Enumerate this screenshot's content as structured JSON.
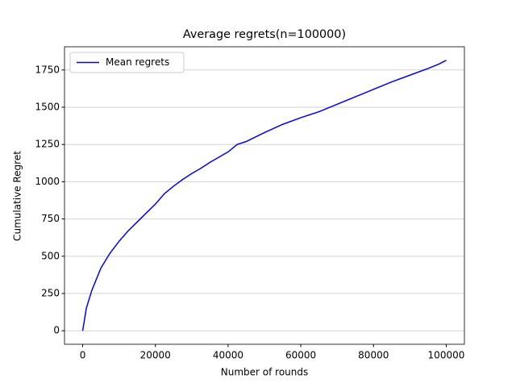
{
  "chart_data": {
    "type": "line",
    "title": "Average regrets(n=100000)",
    "x_label": "Number of rounds",
    "y_label": "Cumulative Regret",
    "x": [
      0,
      1000,
      2500,
      5000,
      7500,
      10000,
      12500,
      15000,
      17500,
      20000,
      22500,
      25000,
      27500,
      30000,
      32500,
      35000,
      37500,
      40000,
      42500,
      45000,
      47500,
      50000,
      55000,
      60000,
      65000,
      70000,
      75000,
      80000,
      85000,
      90000,
      95000,
      98000,
      100000
    ],
    "series": [
      {
        "name": "Mean regrets",
        "color": "#0000ff",
        "values": [
          0,
          150,
          270,
          420,
          520,
          600,
          670,
          730,
          790,
          850,
          920,
          970,
          1015,
          1055,
          1090,
          1130,
          1165,
          1200,
          1250,
          1270,
          1300,
          1330,
          1385,
          1430,
          1470,
          1520,
          1570,
          1620,
          1670,
          1715,
          1760,
          1790,
          1815
        ]
      }
    ],
    "xlim": [
      -5000,
      105000
    ],
    "ylim": [
      -90.75,
      1905.75
    ],
    "xticks": [
      0,
      20000,
      40000,
      60000,
      80000,
      100000
    ],
    "yticks": [
      0,
      250,
      500,
      750,
      1000,
      1250,
      1500,
      1750
    ],
    "grid": "y",
    "legend": "upper-left"
  }
}
